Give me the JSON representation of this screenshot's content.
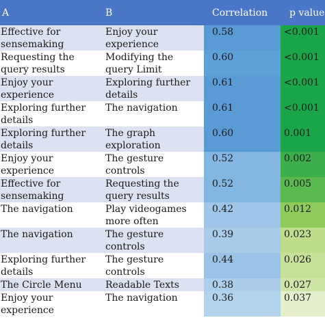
{
  "headers": {
    "a": "A",
    "b": "B",
    "correlation": "Correlation",
    "p": "p value"
  },
  "rows": [
    {
      "a": "Effective for sensemaking",
      "b": "Enjoy your experience",
      "correlation": "0.58",
      "p": "<0.001"
    },
    {
      "a": "Requesting the query results",
      "b": "Modifying the query Limit",
      "correlation": "0.60",
      "p": "<0.001"
    },
    {
      "a": "Enjoy your experience",
      "b": "Exploring further details",
      "correlation": "0.61",
      "p": "<0.001"
    },
    {
      "a": "Exploring further details",
      "b": "The navigation",
      "correlation": "0.61",
      "p": "<0.001"
    },
    {
      "a": "Exploring further details",
      "b": "The graph exploration",
      "correlation": "0.60",
      "p": "0.001"
    },
    {
      "a": "Enjoy your experience",
      "b": "The gesture controls",
      "correlation": "0.52",
      "p": "0.002"
    },
    {
      "a": "Effective for sensemaking",
      "b": "Requesting the query results",
      "correlation": "0.52",
      "p": "0.005"
    },
    {
      "a": "The navigation",
      "b": "Play videogames more often",
      "correlation": "0.42",
      "p": "0.012"
    },
    {
      "a": "The navigation",
      "b": "The gesture controls",
      "correlation": "0.39",
      "p": "0.023"
    },
    {
      "a": "Exploring further details",
      "b": "The gesture controls",
      "correlation": "0.44",
      "p": "0.026"
    },
    {
      "a": "The Circle Menu",
      "b": "Readable Texts",
      "correlation": "0.38",
      "p": "0.027"
    },
    {
      "a": "Enjoy your experience",
      "b": "The navigation",
      "correlation": "0.36",
      "p": "0.037"
    }
  ],
  "colors": {
    "header_bg": "#4a76c8",
    "header_text": "#ffffff",
    "stripe": "#dde2f2",
    "correlation_shades": [
      "#5b9bd5",
      "#5ea0d8",
      "#5b9bd5",
      "#5b9bd5",
      "#5b9bd5",
      "#83b6e1",
      "#83b6e1",
      "#9fc6e8",
      "#a8cbea",
      "#9ac3e7",
      "#acceeb",
      "#b3d2ec"
    ],
    "p_shades": [
      "#1aa549",
      "#1aa549",
      "#1aa549",
      "#1aa549",
      "#1aa549",
      "#3caf4c",
      "#5ab94f",
      "#8fcb5a",
      "#c0dd8e",
      "#c6e09a",
      "#cfe5a7",
      "#e3efcd"
    ]
  }
}
